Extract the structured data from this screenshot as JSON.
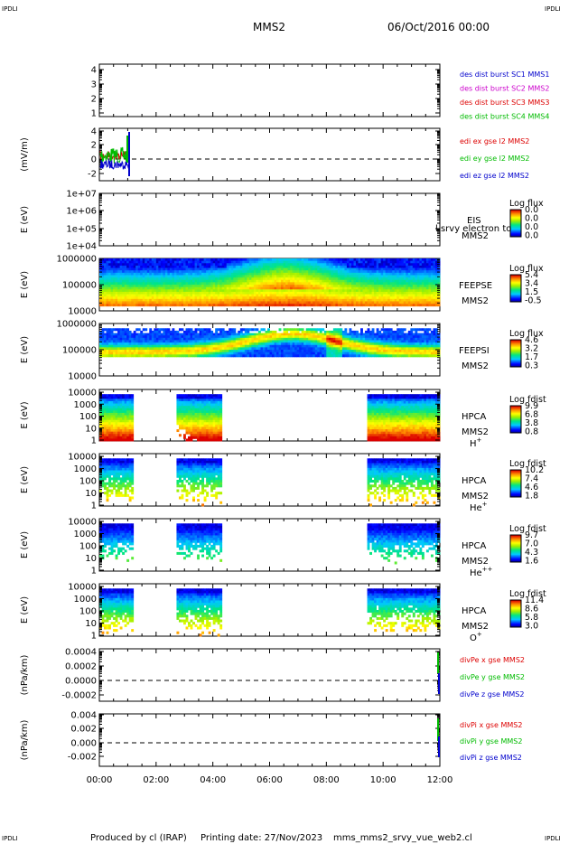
{
  "header": {
    "corner_tl": "IPDLI",
    "corner_tr": "IPDLI",
    "corner_bl": "IPDLI",
    "corner_br": "IPDLI",
    "spacecraft": "MMS2",
    "datetime": "06/Oct/2016 00:00"
  },
  "footer": {
    "produced": "Produced by cl (IRAP)",
    "printing": "Printing date: 27/Nov/2023",
    "file": "mms_mms2_srvy_vue_web2.cl"
  },
  "time_axis": {
    "ticks": [
      "00:00",
      "02:00",
      "04:00",
      "06:00",
      "08:00",
      "10:00",
      "12:00"
    ]
  },
  "colors": {
    "mms1": "#0000cc",
    "mms2": "#cc00cc",
    "mms3": "#dd0000",
    "mms4": "#00bb00",
    "x": "#dd0000",
    "y": "#00bb00",
    "z": "#0000cc"
  },
  "panels": {
    "p1": {
      "ticks": [
        "4",
        "3",
        "2",
        "1"
      ],
      "labels": [
        "des dist burst SC1 MMS1",
        "des dist burst SC2 MMS2",
        "des dist burst SC3 MMS3",
        "des dist burst SC4 MMS4"
      ]
    },
    "p2": {
      "ylabel": "(mV/m)",
      "ticks": [
        "4",
        "2",
        "0",
        "-2"
      ],
      "labels": [
        "edi ex gse l2 MMS2",
        "edi ey gse l2 MMS2",
        "edi ez gse l2 MMS2"
      ]
    },
    "p3": {
      "ylabel": "E (eV)",
      "ticks": [
        "1e+07",
        "1e+06",
        "1e+05",
        "1e+04"
      ],
      "inst": "EIS",
      "sc": "MMS2",
      "overlap": "l srvy electron to",
      "cb_title": "Log flux",
      "cb_ticks": [
        "0.0",
        "0.0",
        "0.0",
        "0.0"
      ]
    },
    "p4": {
      "ylabel": "E (eV)",
      "ticks": [
        "1000000",
        "100000",
        "10000"
      ],
      "inst": "FEEPSE",
      "sc": "MMS2",
      "cb_title": "Log flux",
      "cb_ticks": [
        "5.4",
        "3.4",
        "1.5",
        "-0.5"
      ]
    },
    "p5": {
      "ylabel": "E (eV)",
      "ticks": [
        "1000000",
        "100000",
        "10000"
      ],
      "inst": "FEEPSI",
      "sc": "MMS2",
      "cb_title": "Log flux",
      "cb_ticks": [
        "4.6",
        "3.2",
        "1.7",
        "0.3"
      ]
    },
    "p6": {
      "ylabel": "E (eV)",
      "ticks": [
        "10000",
        "1000",
        "100",
        "10",
        "1"
      ],
      "inst": "HPCA",
      "sc": "MMS2",
      "ion": "H",
      "ion_sup": "+",
      "cb_title": "Log fdist",
      "cb_ticks": [
        "9.9",
        "6.8",
        "3.8",
        "0.8"
      ]
    },
    "p7": {
      "ylabel": "E (eV)",
      "ticks": [
        "10000",
        "1000",
        "100",
        "10",
        "1"
      ],
      "inst": "HPCA",
      "sc": "MMS2",
      "ion": "He",
      "ion_sup": "+",
      "cb_title": "Log fdist",
      "cb_ticks": [
        "10.2",
        "7.4",
        "4.6",
        "1.8"
      ]
    },
    "p8": {
      "ylabel": "E (eV)",
      "ticks": [
        "10000",
        "1000",
        "100",
        "10",
        "1"
      ],
      "inst": "HPCA",
      "sc": "MMS2",
      "ion": "He",
      "ion_sup": "++",
      "cb_title": "Log fdist",
      "cb_ticks": [
        "9.7",
        "7.0",
        "4.3",
        "1.6"
      ]
    },
    "p9": {
      "ylabel": "E (eV)",
      "ticks": [
        "10000",
        "1000",
        "100",
        "10",
        "1"
      ],
      "inst": "HPCA",
      "sc": "MMS2",
      "ion": "O",
      "ion_sup": "+",
      "cb_title": "Log fdist",
      "cb_ticks": [
        "11.4",
        "8.6",
        "5.8",
        "3.0"
      ]
    },
    "p10": {
      "ylabel": "(nPa/km)",
      "ticks": [
        "0.0004",
        "0.0002",
        "0.0000",
        "-0.0002"
      ],
      "labels": [
        "divPe x gse MMS2",
        "divPe y gse MMS2",
        "divPe z gse MMS2"
      ]
    },
    "p11": {
      "ylabel": "(nPa/km)",
      "ticks": [
        "0.004",
        "0.002",
        "0.000",
        "-0.002"
      ],
      "labels": [
        "divPi x gse MMS2",
        "divPi y gse MMS2",
        "divPi z gse MMS2"
      ]
    }
  },
  "chart_data": {
    "type": "heatmap",
    "x_range": [
      "00:00",
      "12:00"
    ],
    "hpca_data_intervals_hours": [
      [
        0.0,
        1.2
      ],
      [
        2.7,
        4.35
      ],
      [
        9.45,
        12.0
      ]
    ],
    "feeps_energy_range_eV": [
      10000,
      1000000
    ],
    "hpca_energy_range_eV": [
      1,
      10000
    ]
  }
}
